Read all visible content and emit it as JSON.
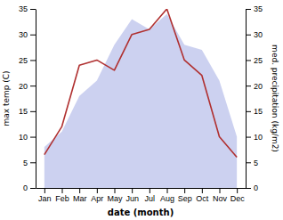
{
  "chart_data": {
    "type": "line",
    "xlabel": "date (month)",
    "ylabel": "max temp (C)",
    "y2label": "med. precipitation (kg/m2)",
    "categories": [
      "Jan",
      "Feb",
      "Mar",
      "Apr",
      "May",
      "Jun",
      "Jul",
      "Aug",
      "Sep",
      "Oct",
      "Nov",
      "Dec"
    ],
    "series": [
      {
        "name": "precip",
        "type": "area",
        "axis": "y2",
        "color": "#b0b8e8",
        "values": [
          8.0,
          11.0,
          18.0,
          21.0,
          28.0,
          33.0,
          31.0,
          34.0,
          28.0,
          27.0,
          21.0,
          10.0
        ]
      },
      {
        "name": "temp",
        "type": "line",
        "axis": "y",
        "color": "#b03030",
        "values": [
          6.5,
          12.0,
          24.0,
          25.0,
          23.0,
          30.0,
          31.0,
          35.0,
          25.0,
          22.0,
          10.0,
          6.0
        ]
      }
    ],
    "ylim": [
      0,
      35
    ],
    "yticks": [
      0,
      5,
      10,
      15,
      20,
      25,
      30,
      35
    ],
    "y2lim": [
      0,
      35
    ],
    "y2ticks": [
      0,
      5,
      10,
      15,
      20,
      25,
      30,
      35
    ],
    "grid": false
  }
}
